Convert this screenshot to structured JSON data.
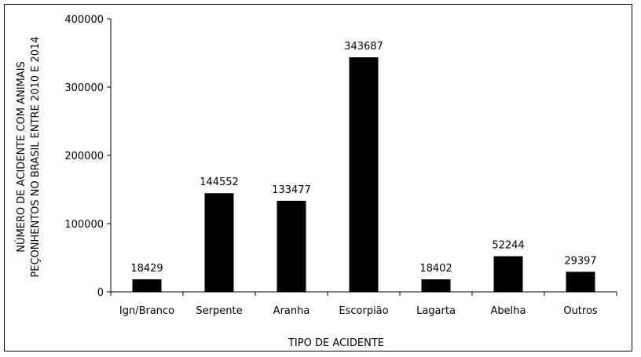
{
  "chart_data": {
    "type": "bar",
    "title": "",
    "xlabel": "TIPO DE ACIDENTE",
    "ylabel_lines": [
      "NÚMERO DE ACIDENTE COM ANIMAIS",
      "PEÇONHENTOS NO BRASIL ENTRE 2010 E 2014"
    ],
    "categories": [
      "Ign/Branco",
      "Serpente",
      "Aranha",
      "Escorpião",
      "Lagarta",
      "Abelha",
      "Outros"
    ],
    "values": [
      18429,
      144552,
      133477,
      343687,
      18402,
      52244,
      29397
    ],
    "value_labels": [
      "18429",
      "144552",
      "133477",
      "343687",
      "18402",
      "52244",
      "29397"
    ],
    "y_ticks": [
      "0",
      "100000",
      "200000",
      "300000",
      "400000"
    ],
    "ylim": [
      0,
      400000
    ],
    "bar_color": "#000000",
    "grid": false,
    "legend": false
  }
}
